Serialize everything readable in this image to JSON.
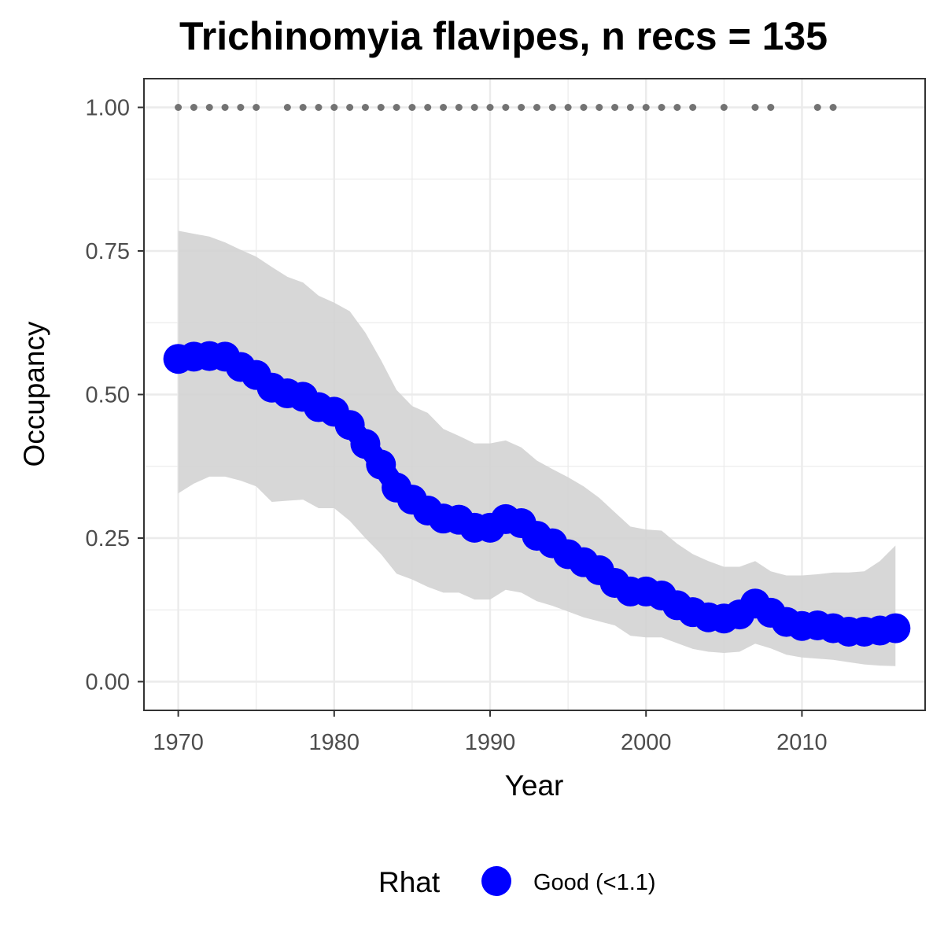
{
  "chart_data": {
    "type": "line",
    "title": "Trichinomyia flavipes, n recs = 135",
    "xlabel": "Year",
    "ylabel": "Occupancy",
    "xlim": [
      1967.8,
      2017.9
    ],
    "ylim": [
      -0.05,
      1.05
    ],
    "x_ticks": [
      1970,
      1980,
      1990,
      2000,
      2010
    ],
    "x_tick_labels": [
      "1970",
      "1980",
      "1990",
      "2000",
      "2010"
    ],
    "y_ticks": [
      0,
      0.25,
      0.5,
      0.75,
      1
    ],
    "y_tick_labels": [
      "0.00",
      "0.25",
      "0.50",
      "0.75",
      "1.00"
    ],
    "grid": true,
    "legend": {
      "title": "Rhat",
      "placement": "bottom",
      "entries": [
        {
          "label": "Good (<1.1)",
          "color": "#0000ff"
        }
      ]
    },
    "colors": {
      "estimate": "#0000ff",
      "ribbon": "#d3d3d3",
      "records": "#737373",
      "panel_border": "#333333",
      "grid": "#ebebeb"
    },
    "x": [
      1970,
      1971,
      1972,
      1973,
      1974,
      1975,
      1976,
      1977,
      1978,
      1979,
      1980,
      1981,
      1982,
      1983,
      1984,
      1985,
      1986,
      1987,
      1988,
      1989,
      1990,
      1991,
      1992,
      1993,
      1994,
      1995,
      1996,
      1997,
      1998,
      1999,
      2000,
      2001,
      2002,
      2003,
      2004,
      2005,
      2006,
      2007,
      2008,
      2009,
      2010,
      2011,
      2012,
      2013,
      2014,
      2015,
      2016
    ],
    "series": [
      {
        "name": "Good (<1.1)",
        "values": [
          0.562,
          0.566,
          0.567,
          0.566,
          0.548,
          0.534,
          0.512,
          0.502,
          0.496,
          0.478,
          0.47,
          0.447,
          0.414,
          0.378,
          0.338,
          0.317,
          0.298,
          0.284,
          0.282,
          0.268,
          0.268,
          0.283,
          0.276,
          0.254,
          0.241,
          0.222,
          0.208,
          0.194,
          0.172,
          0.157,
          0.157,
          0.15,
          0.133,
          0.121,
          0.112,
          0.11,
          0.117,
          0.136,
          0.12,
          0.104,
          0.097,
          0.098,
          0.093,
          0.087,
          0.087,
          0.089,
          0.093
        ]
      }
    ],
    "ribbon": {
      "lower": [
        0.328,
        0.345,
        0.357,
        0.357,
        0.35,
        0.34,
        0.313,
        0.315,
        0.317,
        0.302,
        0.302,
        0.28,
        0.25,
        0.222,
        0.188,
        0.178,
        0.165,
        0.155,
        0.155,
        0.143,
        0.143,
        0.16,
        0.155,
        0.14,
        0.132,
        0.122,
        0.112,
        0.105,
        0.098,
        0.08,
        0.077,
        0.077,
        0.067,
        0.057,
        0.052,
        0.05,
        0.052,
        0.066,
        0.058,
        0.047,
        0.042,
        0.04,
        0.038,
        0.034,
        0.03,
        0.028,
        0.027
      ],
      "upper": [
        0.785,
        0.78,
        0.775,
        0.765,
        0.752,
        0.74,
        0.722,
        0.705,
        0.695,
        0.672,
        0.66,
        0.645,
        0.608,
        0.56,
        0.508,
        0.48,
        0.468,
        0.44,
        0.428,
        0.415,
        0.415,
        0.42,
        0.408,
        0.385,
        0.37,
        0.356,
        0.34,
        0.32,
        0.295,
        0.27,
        0.265,
        0.263,
        0.24,
        0.222,
        0.21,
        0.2,
        0.2,
        0.21,
        0.192,
        0.185,
        0.185,
        0.187,
        0.19,
        0.19,
        0.192,
        0.21,
        0.237
      ]
    },
    "records": {
      "y": 1.0,
      "x": [
        1970,
        1971,
        1972,
        1973,
        1974,
        1975,
        1977,
        1978,
        1979,
        1980,
        1981,
        1982,
        1983,
        1984,
        1985,
        1986,
        1987,
        1988,
        1989,
        1990,
        1991,
        1992,
        1993,
        1994,
        1995,
        1996,
        1997,
        1998,
        1999,
        2000,
        2001,
        2002,
        2003,
        2005,
        2007,
        2008,
        2011,
        2012
      ]
    }
  }
}
